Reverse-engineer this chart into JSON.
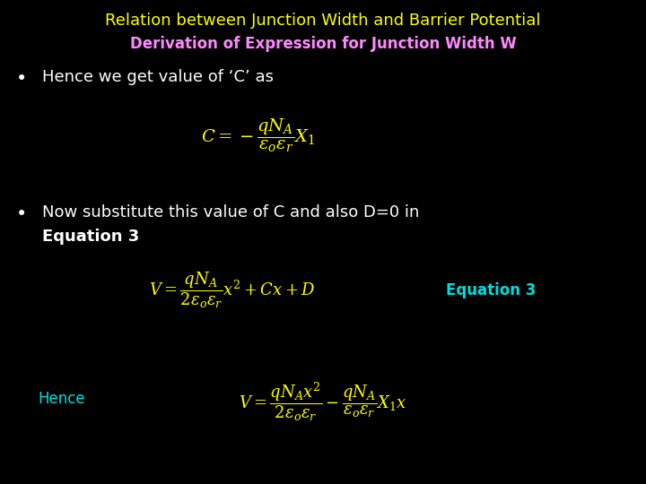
{
  "background_color": "#000000",
  "title1": "Relation between Junction Width and Barrier Potential",
  "title1_color": "#ffff00",
  "title1_fontsize": 13,
  "title2": "Derivation of Expression for Junction Width W",
  "title2_color": "#ff88ff",
  "title2_fontsize": 12,
  "bullet1_text": "Hence we get value of ‘C’ as",
  "bullet1_color": "#ffffff",
  "bullet1_fontsize": 13,
  "eq1_color": "#ffff00",
  "eq1_fontsize": 14,
  "bullet2_line1": "Now substitute this value of C and also D=0 in",
  "bullet2_line2": "Equation 3",
  "bullet2_color": "#ffffff",
  "bullet2_fontsize": 13,
  "eq2_color": "#ffff00",
  "eq2_fontsize": 13,
  "eq2_label": "Equation 3",
  "eq2_label_color": "#00dddd",
  "eq2_label_fontsize": 12,
  "hence_label": "Hence",
  "hence_label_color": "#00dddd",
  "hence_label_fontsize": 12,
  "eq3_color": "#ffff00",
  "eq3_fontsize": 13
}
